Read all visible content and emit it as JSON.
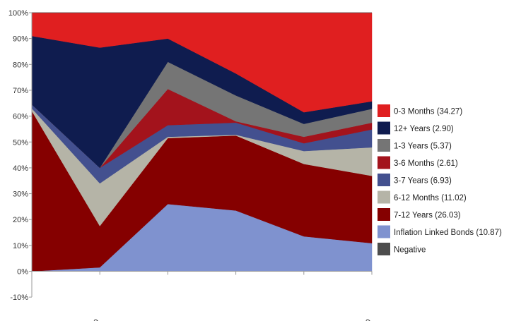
{
  "chart_data": {
    "type": "area",
    "stacked": true,
    "categories": [
      "",
      "2019",
      "",
      "",
      "",
      "2020"
    ],
    "ylim": [
      -10,
      100
    ],
    "yticks": [
      -10,
      0,
      10,
      20,
      30,
      40,
      50,
      60,
      70,
      80,
      90,
      100
    ],
    "ytick_labels": [
      "-10%",
      "0%",
      "10%",
      "20%",
      "30%",
      "40%",
      "50%",
      "60%",
      "70%",
      "80%",
      "90%",
      "100%"
    ],
    "grid": false,
    "legend_position": "right",
    "series": [
      {
        "name": "Inflation Linked Bonds (10.87)",
        "color": "#7f92cf",
        "values": [
          0,
          1.5,
          26,
          23.5,
          13.5,
          10.87
        ]
      },
      {
        "name": "7-12 Years (26.03)",
        "color": "#850000",
        "values": [
          62,
          16,
          25.5,
          29,
          28,
          26.03
        ]
      },
      {
        "name": "6-12 Months (11.02)",
        "color": "#b5b4a7",
        "values": [
          1,
          16.5,
          0.5,
          0.3,
          5,
          11.02
        ]
      },
      {
        "name": "3-7 Years (6.93)",
        "color": "#43508f",
        "values": [
          1.5,
          6,
          4.5,
          4.7,
          3,
          6.93
        ]
      },
      {
        "name": "3-6 Months (2.61)",
        "color": "#a3131c",
        "values": [
          0,
          0,
          14,
          0.5,
          2.5,
          2.61
        ]
      },
      {
        "name": "1-3 Years (5.37)",
        "color": "#757575",
        "values": [
          0,
          0,
          10.5,
          10,
          5,
          5.37
        ]
      },
      {
        "name": "12+ Years (2.90)",
        "color": "#0f1c4f",
        "values": [
          26.5,
          46.5,
          9,
          8.5,
          4.5,
          2.9
        ]
      },
      {
        "name": "0-3 Months (34.27)",
        "color": "#e01f20",
        "values": [
          9,
          13.5,
          10,
          23.5,
          38.5,
          34.27
        ]
      },
      {
        "name": "Negative",
        "color": "#4d4d4d",
        "values": [
          0,
          0,
          0,
          0,
          0,
          0
        ]
      }
    ],
    "legend_order": [
      "0-3 Months (34.27)",
      "12+ Years (2.90)",
      "1-3 Years (5.37)",
      "3-6 Months (2.61)",
      "3-7 Years (6.93)",
      "6-12 Months (11.02)",
      "7-12 Years (26.03)",
      "Inflation Linked Bonds (10.87)",
      "Negative"
    ]
  }
}
